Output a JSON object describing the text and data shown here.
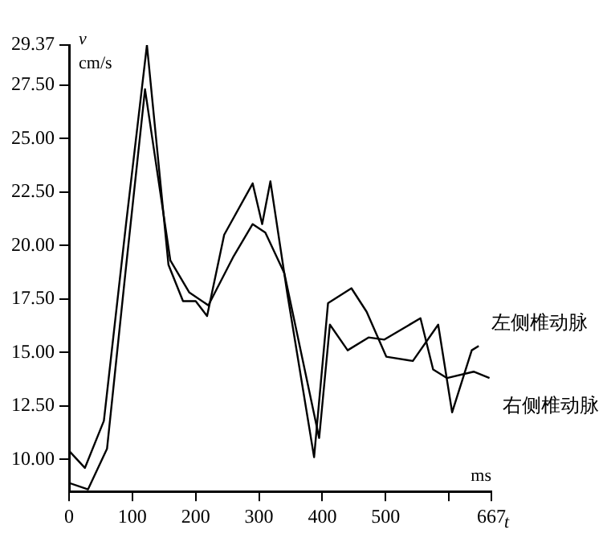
{
  "chart_data": {
    "type": "line",
    "xlabel": "t",
    "ylabel": "v",
    "annotations": [
      "cm/s",
      "ms"
    ],
    "xlim": [
      0,
      667
    ],
    "xticks": [
      0,
      100,
      200,
      300,
      400,
      500,
      {
        "value": 600,
        "label": null
      },
      667
    ],
    "ylim": [
      8.5,
      29.37
    ],
    "yticks": [
      {
        "value": 10,
        "label": "10.00"
      },
      {
        "value": 12.5,
        "label": "12.50"
      },
      {
        "value": 15,
        "label": "15.00"
      },
      {
        "value": 17.5,
        "label": "17.50"
      },
      {
        "value": 20,
        "label": "20.00"
      },
      {
        "value": 22.5,
        "label": "22.50"
      },
      {
        "value": 25,
        "label": "25.00"
      },
      {
        "value": 27.5,
        "label": "27.50"
      },
      {
        "value": 29.37,
        "label": "29.37"
      }
    ],
    "grid": false,
    "legend": false,
    "marker": "none",
    "line_style": "solid",
    "series": [
      {
        "name": "左侧椎动脉",
        "color": "#000000",
        "x": [
          0,
          25,
          55,
          90,
          123,
          157,
          180,
          200,
          218,
          245,
          290,
          305,
          318,
          345,
          387,
          409,
          446,
          470,
          501,
          543,
          583,
          605,
          636,
          647
        ],
        "values": [
          10.4,
          9.6,
          11.8,
          21,
          29.37,
          19.1,
          17.4,
          17.4,
          16.7,
          20.5,
          22.9,
          21.0,
          23.0,
          17.7,
          10.1,
          17.3,
          18.0,
          16.9,
          14.8,
          14.6,
          16.3,
          12.2,
          15.1,
          15.3
        ]
      },
      {
        "name": "右侧椎动脉",
        "color": "#000000",
        "x": [
          0,
          30,
          60,
          90,
          120,
          160,
          190,
          220,
          260,
          290,
          310,
          340,
          395,
          412,
          440,
          473,
          498,
          555,
          575,
          597,
          639,
          664
        ],
        "values": [
          8.9,
          8.6,
          10.5,
          19,
          27.3,
          19.3,
          17.8,
          17.2,
          19.5,
          21.0,
          20.6,
          18.7,
          11.0,
          16.3,
          15.1,
          15.7,
          15.6,
          16.6,
          14.2,
          13.8,
          14.1,
          13.8
        ]
      }
    ]
  }
}
